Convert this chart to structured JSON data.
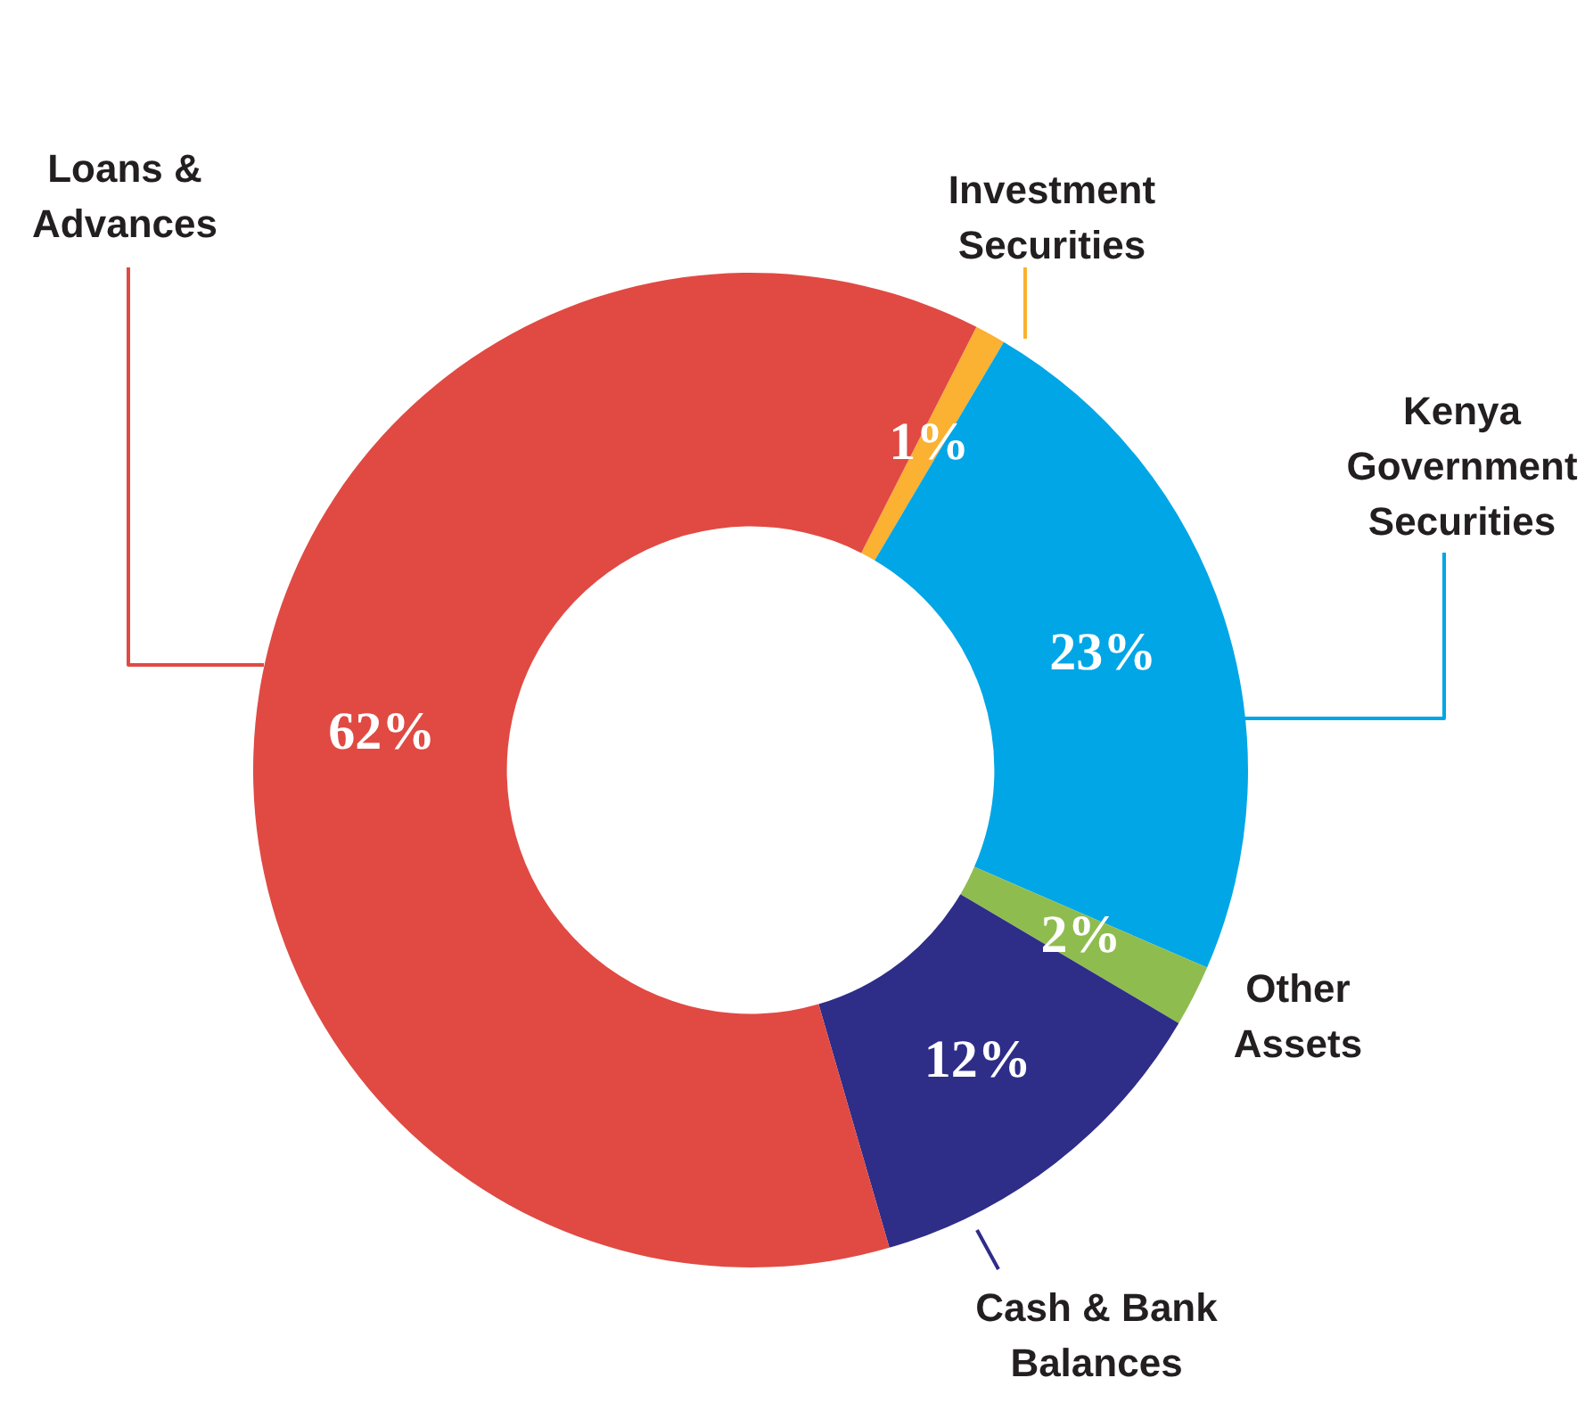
{
  "chart_data": {
    "type": "donut",
    "categories": [
      "Investment Securities",
      "Kenya Government Securities",
      "Other Assets",
      "Cash & Bank Balances",
      "Loans & Advances"
    ],
    "values": [
      1,
      23,
      2,
      12,
      62
    ],
    "colors": [
      "#fbb131",
      "#00a6e6",
      "#8fbc4f",
      "#2e2d88",
      "#e04a43"
    ],
    "value_labels": [
      "1%",
      "23%",
      "2%",
      "12%",
      "62%"
    ],
    "legend": false
  }
}
